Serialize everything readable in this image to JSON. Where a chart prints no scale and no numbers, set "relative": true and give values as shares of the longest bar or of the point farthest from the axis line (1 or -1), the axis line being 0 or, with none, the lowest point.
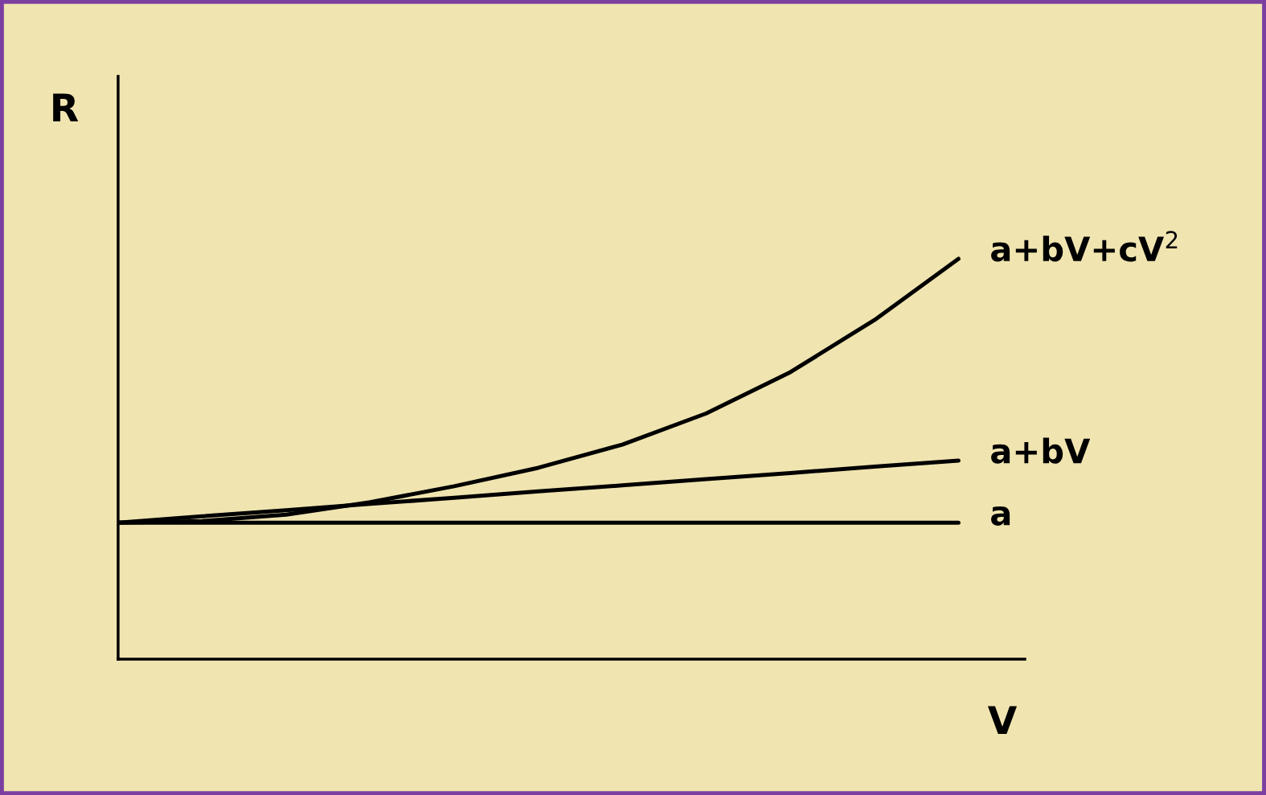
{
  "chart_data": {
    "type": "line",
    "relative": true,
    "xlabel": "V",
    "ylabel": "R",
    "grid": false,
    "legend": false,
    "marker": "none",
    "line_style": "solid",
    "categories": [
      null,
      null,
      null,
      null,
      null,
      null,
      null,
      null,
      null,
      null,
      null
    ],
    "series": [
      {
        "name": "a+bV+cV$^{2}$",
        "color": "#000000",
        "values": [
          0.341,
          0.345,
          0.361,
          0.392,
          0.432,
          0.478,
          0.536,
          0.614,
          0.717,
          0.847,
          1.0
        ]
      },
      {
        "name": "a+bV",
        "color": "#000000",
        "values": [
          0.341,
          0.357,
          0.372,
          0.388,
          0.403,
          0.419,
          0.434,
          0.45,
          0.465,
          0.481,
          0.496
        ]
      },
      {
        "name": "a",
        "color": "#000000",
        "values": [
          0.341,
          0.341,
          0.341,
          0.341,
          0.341,
          0.341,
          0.341,
          0.341,
          0.341,
          0.341,
          0.341
        ]
      }
    ]
  }
}
